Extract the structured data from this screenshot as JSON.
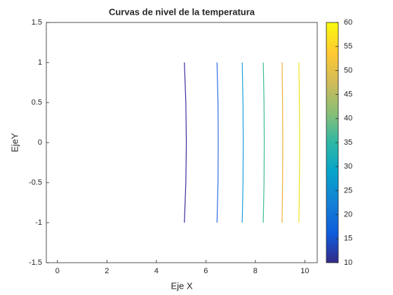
{
  "chart_data": {
    "type": "line",
    "title": "Curvas de nivel de la temperatura",
    "x_label": "Eje X",
    "y_label": "EjeY",
    "xlim": [
      -0.45,
      10.5
    ],
    "ylim": [
      -1.5,
      1.5
    ],
    "xticks": [
      0,
      2,
      4,
      6,
      8,
      10
    ],
    "yticks": [
      -1.5,
      -1,
      -0.5,
      0,
      0.5,
      1,
      1.5
    ],
    "series": [
      {
        "color": "#3b2c9c",
        "x": [
          5.13,
          5.19,
          5.21,
          5.19,
          5.13
        ],
        "values": [
          -1,
          -0.5,
          0,
          0.5,
          1
        ]
      },
      {
        "color": "#2f6ee0",
        "x": [
          6.45,
          6.49,
          6.5,
          6.49,
          6.45
        ],
        "values": [
          -1,
          -0.5,
          0,
          0.5,
          1
        ]
      },
      {
        "color": "#1f9fdb",
        "x": [
          7.47,
          7.5,
          7.51,
          7.5,
          7.47
        ],
        "values": [
          -1,
          -0.5,
          0,
          0.5,
          1
        ]
      },
      {
        "color": "#3dbd8e",
        "x": [
          8.32,
          8.35,
          8.36,
          8.35,
          8.32
        ],
        "values": [
          -1,
          -0.5,
          0,
          0.5,
          1
        ]
      },
      {
        "color": "#eab43a",
        "x": [
          9.08,
          9.1,
          9.11,
          9.1,
          9.08
        ],
        "values": [
          -1,
          -0.5,
          0,
          0.5,
          1
        ]
      },
      {
        "color": "#f3e21e",
        "x": [
          9.76,
          9.78,
          9.79,
          9.78,
          9.76
        ],
        "values": [
          -1,
          -0.5,
          0,
          0.5,
          1
        ]
      }
    ],
    "colorbar": {
      "lim": [
        10,
        60
      ],
      "ticks": [
        10,
        15,
        20,
        25,
        30,
        35,
        40,
        45,
        50,
        55,
        60
      ]
    }
  }
}
